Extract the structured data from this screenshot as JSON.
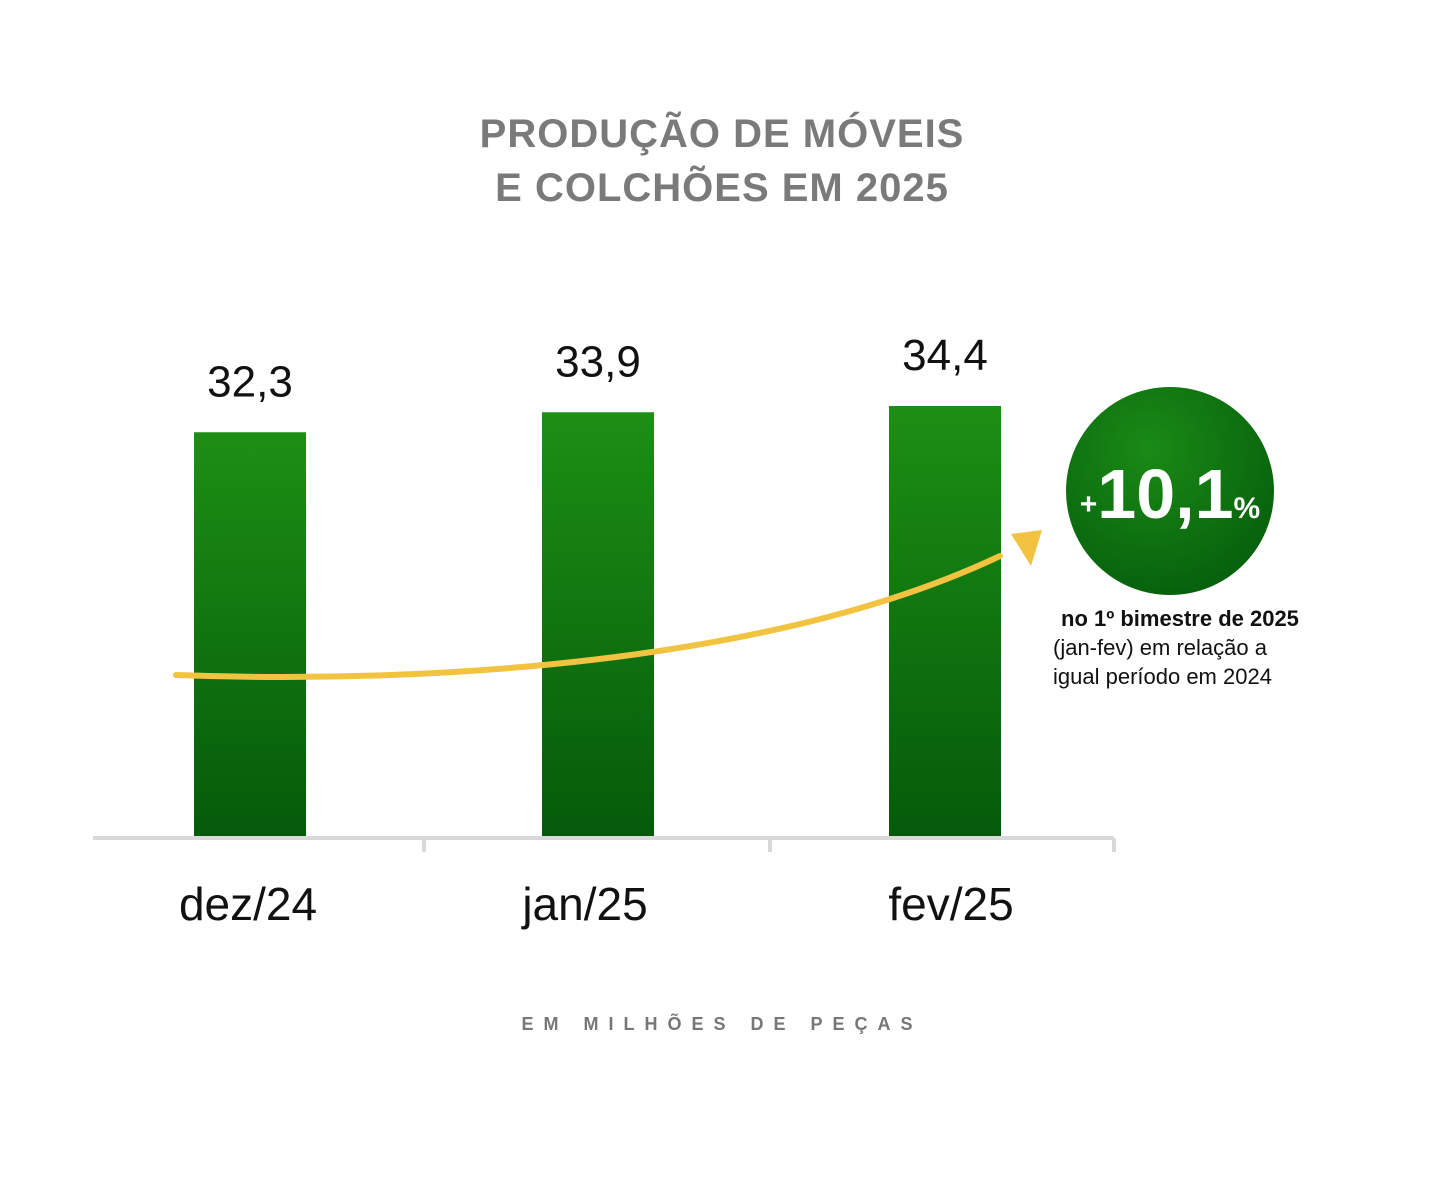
{
  "title": {
    "line1": "PRODUÇÃO DE MÓVEIS",
    "line2": "E COLCHÕES EM 2025"
  },
  "badge": {
    "plus": "+",
    "value": "10,1",
    "percent": "%"
  },
  "note": {
    "bold": "no 1º bimestre de 2025",
    "line2": "(jan-fev) em relação a",
    "line3": "igual período em 2024"
  },
  "units": "EM MILHÕES DE PEÇAS",
  "colors": {
    "bar_top": "#1c8f14",
    "bar_bottom": "#055a0a",
    "arrow": "#f2c340",
    "badge_light": "#1a8a16",
    "badge_dark": "#065f0c",
    "axis": "#d9d9d9"
  },
  "chart_data": {
    "type": "bar",
    "categories": [
      "dez/24",
      "jan/25",
      "fev/25"
    ],
    "values": [
      32.3,
      33.9,
      34.4
    ],
    "value_labels": [
      "32,3",
      "33,9",
      "34,4"
    ],
    "ylim": [
      0,
      36
    ],
    "grid": false,
    "legend": "none",
    "trend_arrow": true
  }
}
